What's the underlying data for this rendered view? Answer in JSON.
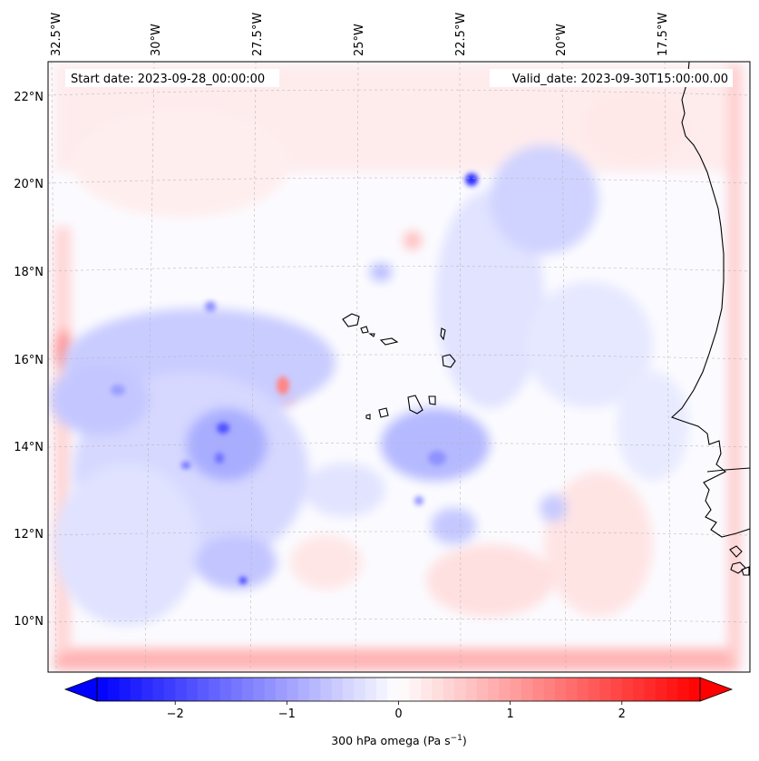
{
  "map": {
    "start_date_label": "Start date: 2023-09-28_00:00:00",
    "valid_date_label": "Valid_date: 2023-09-30T15:00:00.00",
    "lon_labels": [
      "32.5°W",
      "30°W",
      "27.5°W",
      "25°W",
      "22.5°W",
      "20°W",
      "17.5°W"
    ],
    "lat_labels": [
      "22°N",
      "20°N",
      "18°N",
      "16°N",
      "14°N",
      "12°N",
      "10°N"
    ],
    "gridlines": "dashed",
    "coastline_color": "#000000"
  },
  "colorbar": {
    "label": "300 hPa omega (Pa s",
    "label_exponent": "−1",
    "label_close": ")",
    "ticks": [
      "−2",
      "−1",
      "0",
      "1",
      "2"
    ],
    "min": -2.7,
    "max": 2.7,
    "tick_values": [
      -2,
      -1,
      0,
      1,
      2
    ],
    "colormap": "bwr",
    "color_low": "#0000ff",
    "color_mid": "#ffffff",
    "color_high": "#ff0000",
    "extend": "both"
  }
}
